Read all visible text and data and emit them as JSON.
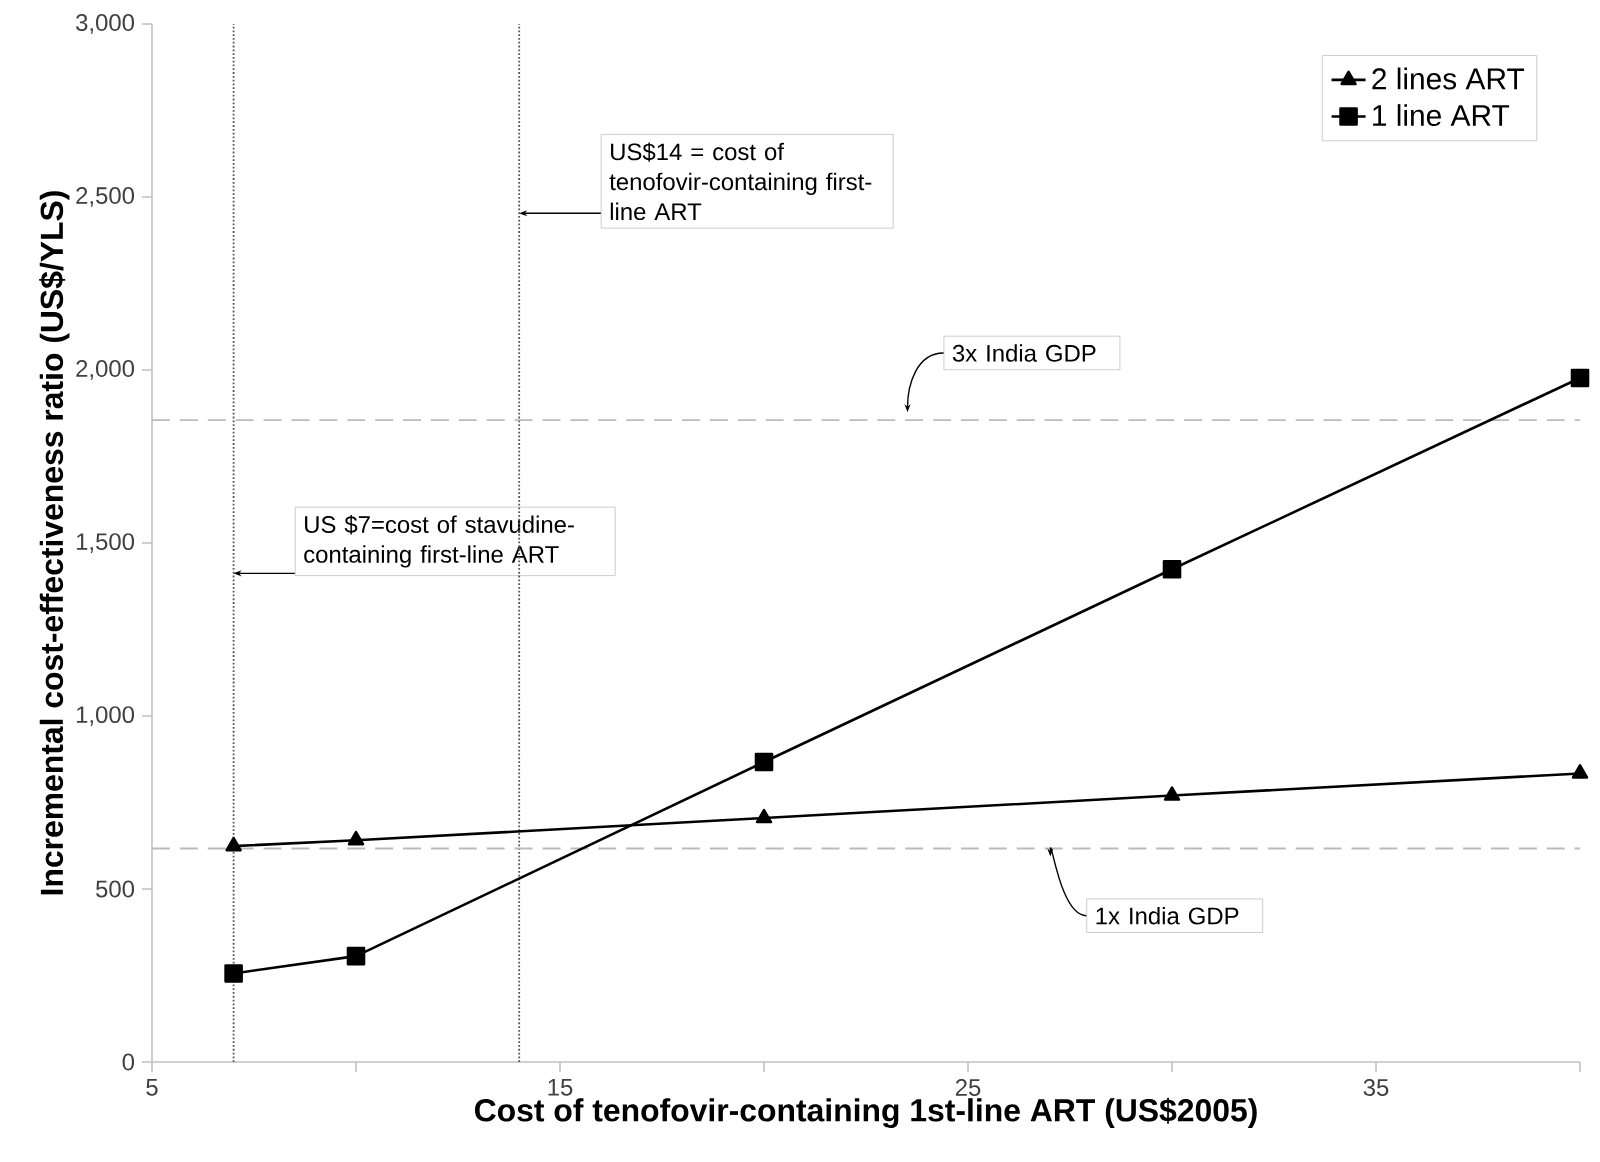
{
  "chart_data": {
    "type": "line",
    "xlabel": "Cost of tenofovir-containing 1st-line ART (US$2005)",
    "ylabel": "Incremental cost-effectiveness ratio (US$/YLS)",
    "x": [
      7,
      10,
      20,
      30,
      40
    ],
    "series": [
      {
        "name": "2 lines ART",
        "color": "#000000",
        "marker": "triangle",
        "line_style": "solid",
        "values": [
          624,
          641,
          705,
          770,
          834
        ]
      },
      {
        "name": "1 line ART",
        "color": "#000000",
        "marker": "square",
        "line_style": "solid",
        "values": [
          256,
          306,
          867,
          1424,
          1977
        ]
      }
    ],
    "xlim": [
      5,
      40
    ],
    "xticks": [
      5,
      {
        "value": 10,
        "label": null
      },
      15,
      {
        "value": 20,
        "label": null
      },
      25,
      {
        "value": 30,
        "label": null
      },
      35,
      {
        "value": 40,
        "label": null
      }
    ],
    "ylim": [
      0,
      3000
    ],
    "yticks": [
      0,
      500,
      {
        "value": 1000,
        "label": "1,000"
      },
      {
        "value": 1500,
        "label": "1,500"
      },
      {
        "value": 2000,
        "label": "2,000"
      },
      {
        "value": 2500,
        "label": "2,500"
      },
      {
        "value": 3000,
        "label": "3,000"
      }
    ],
    "ref_lines": [
      {
        "axis": "x",
        "value": 7,
        "label": "US $7=cost of stavudine-containing first-line ART",
        "color": "#555555",
        "line_style": "dotted"
      },
      {
        "axis": "x",
        "value": 14,
        "label": "US$14 = cost of tenofovir-containing first-line ART",
        "color": "#555555",
        "line_style": "dotted"
      },
      {
        "axis": "y",
        "value": 1855,
        "label": "3x India GDP",
        "color": "#bbbbbb",
        "line_style": "dashed"
      },
      {
        "axis": "y",
        "value": 617,
        "label": "1x India GDP",
        "color": "#bbbbbb",
        "line_style": "dashed"
      }
    ],
    "grid": false,
    "legend": "top right"
  }
}
